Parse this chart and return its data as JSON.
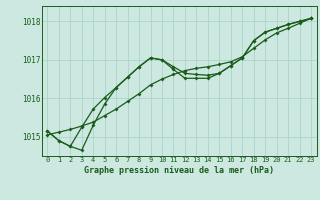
{
  "title": "Graphe pression niveau de la mer (hPa)",
  "bg_color": "#cce8e0",
  "grid_color": "#aad4c8",
  "line_color": "#1a5c1a",
  "xlim_min": -0.5,
  "xlim_max": 23.5,
  "ylim_min": 1014.5,
  "ylim_max": 1018.4,
  "yticks": [
    1015,
    1016,
    1017,
    1018
  ],
  "xticks": [
    0,
    1,
    2,
    3,
    4,
    5,
    6,
    7,
    8,
    9,
    10,
    11,
    12,
    13,
    14,
    15,
    16,
    17,
    18,
    19,
    20,
    21,
    22,
    23
  ],
  "series_a": [
    1015.15,
    1014.9,
    1014.75,
    1014.65,
    1015.3,
    1015.85,
    1016.28,
    1016.55,
    1016.82,
    1017.05,
    1017.0,
    1016.82,
    1016.65,
    1016.62,
    1016.6,
    1016.65,
    1016.85,
    1017.05,
    1017.5,
    1017.72,
    1017.82,
    1017.92,
    1018.0,
    1018.08
  ],
  "series_b": [
    1015.15,
    1014.9,
    1014.75,
    1015.25,
    1015.72,
    1016.02,
    1016.28,
    1016.55,
    1016.82,
    1017.05,
    1017.0,
    1016.75,
    1016.52,
    1016.52,
    1016.52,
    1016.65,
    1016.85,
    1017.05,
    1017.5,
    1017.72,
    1017.82,
    1017.92,
    1018.0,
    1018.08
  ],
  "series_c": [
    1015.05,
    1015.12,
    1015.19,
    1015.28,
    1015.38,
    1015.55,
    1015.72,
    1015.92,
    1016.12,
    1016.35,
    1016.5,
    1016.62,
    1016.72,
    1016.78,
    1016.82,
    1016.88,
    1016.95,
    1017.08,
    1017.3,
    1017.52,
    1017.7,
    1017.82,
    1017.95,
    1018.08
  ],
  "xlabel_fontsize": 6,
  "tick_fontsize": 5,
  "ytick_fontsize": 5.5,
  "linewidth": 0.9,
  "markersize": 2.0
}
